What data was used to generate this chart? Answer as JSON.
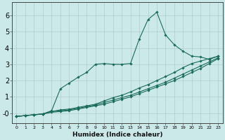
{
  "xlabel": "Humidex (Indice chaleur)",
  "xlim": [
    -0.5,
    23.5
  ],
  "ylim": [
    -0.6,
    6.8
  ],
  "xticks": [
    0,
    1,
    2,
    3,
    4,
    5,
    6,
    7,
    8,
    9,
    10,
    11,
    12,
    13,
    14,
    15,
    16,
    17,
    18,
    19,
    20,
    21,
    22,
    23
  ],
  "yticks": [
    0,
    1,
    2,
    3,
    4,
    5,
    6
  ],
  "ytick_labels": [
    "-0",
    "1",
    "2",
    "3",
    "4",
    "5",
    "6"
  ],
  "background_color": "#cce9e9",
  "grid_color": "#b0cccc",
  "line_color": "#1a6b5a",
  "lines": [
    {
      "x": [
        0,
        1,
        2,
        3,
        4,
        5,
        6,
        7,
        8,
        9,
        10,
        11,
        12,
        13,
        14,
        15,
        16,
        17,
        18,
        19,
        20,
        21,
        22,
        23
      ],
      "y": [
        -0.2,
        -0.15,
        -0.1,
        -0.05,
        0.15,
        1.5,
        1.85,
        2.2,
        2.5,
        3.0,
        3.05,
        3.0,
        3.0,
        3.05,
        4.55,
        5.75,
        6.2,
        4.8,
        4.2,
        3.8,
        3.5,
        3.45,
        3.3,
        3.5
      ]
    },
    {
      "x": [
        0,
        1,
        2,
        3,
        4,
        5,
        6,
        7,
        8,
        9,
        10,
        11,
        12,
        13,
        14,
        15,
        16,
        17,
        18,
        19,
        20,
        21,
        22,
        23
      ],
      "y": [
        -0.2,
        -0.15,
        -0.1,
        -0.05,
        0.1,
        0.2,
        0.25,
        0.35,
        0.45,
        0.55,
        0.75,
        0.95,
        1.1,
        1.3,
        1.55,
        1.75,
        2.0,
        2.25,
        2.5,
        2.8,
        3.05,
        3.2,
        3.35,
        3.5
      ]
    },
    {
      "x": [
        0,
        1,
        2,
        3,
        4,
        5,
        6,
        7,
        8,
        9,
        10,
        11,
        12,
        13,
        14,
        15,
        16,
        17,
        18,
        19,
        20,
        21,
        22,
        23
      ],
      "y": [
        -0.2,
        -0.15,
        -0.1,
        -0.05,
        0.1,
        0.15,
        0.2,
        0.3,
        0.4,
        0.5,
        0.65,
        0.8,
        0.95,
        1.1,
        1.3,
        1.5,
        1.7,
        1.9,
        2.15,
        2.4,
        2.65,
        2.9,
        3.15,
        3.4
      ]
    },
    {
      "x": [
        0,
        1,
        2,
        3,
        4,
        5,
        6,
        7,
        8,
        9,
        10,
        11,
        12,
        13,
        14,
        15,
        16,
        17,
        18,
        19,
        20,
        21,
        22,
        23
      ],
      "y": [
        -0.2,
        -0.15,
        -0.1,
        -0.05,
        0.05,
        0.1,
        0.15,
        0.25,
        0.35,
        0.45,
        0.55,
        0.7,
        0.85,
        1.0,
        1.2,
        1.4,
        1.6,
        1.8,
        2.0,
        2.25,
        2.5,
        2.75,
        3.05,
        3.35
      ]
    }
  ]
}
